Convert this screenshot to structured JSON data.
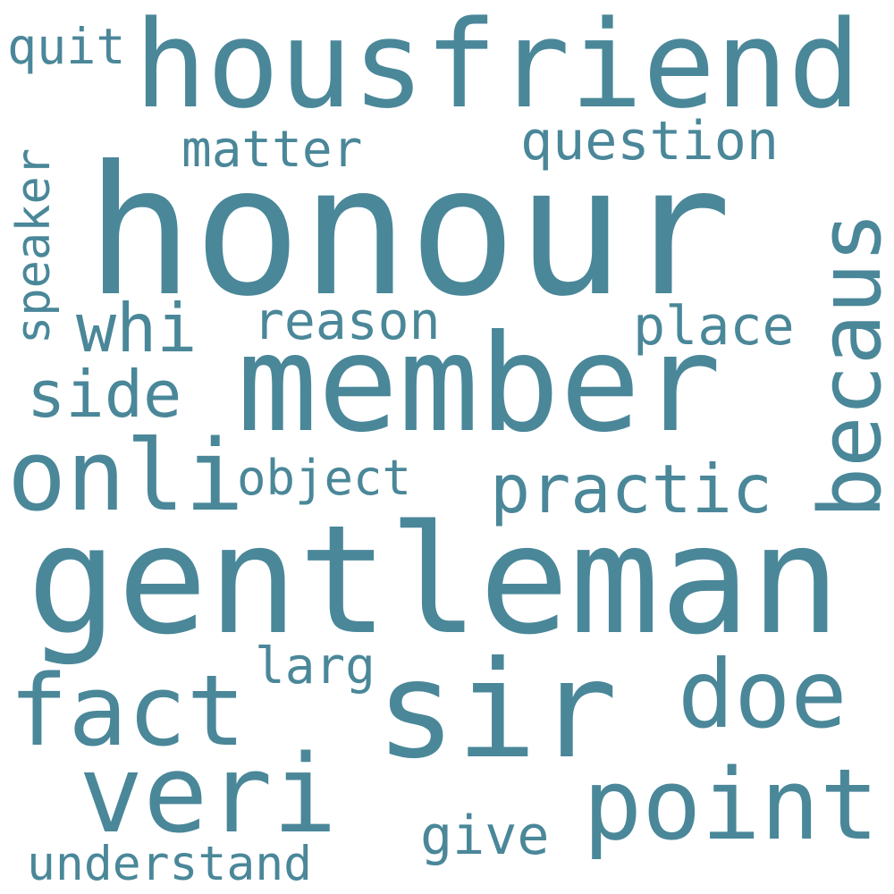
{
  "wordcloud": {
    "color": "#4a8799",
    "background": "#ffffff",
    "words": {
      "honour": "honour",
      "gentleman": "gentleman",
      "member": "member",
      "sir": "sir",
      "housfriend": "housfriend",
      "veri": "veri",
      "point": "point",
      "onli": "onli",
      "fact": "fact",
      "doe": "doe",
      "becaus": "becaus",
      "practic": "practic",
      "whi": "whi",
      "side": "side",
      "question": "question",
      "place": "place",
      "reason": "reason",
      "matter": "matter",
      "object": "object",
      "larg": "larg",
      "give": "give",
      "understand": "understand",
      "quit": "quit",
      "speaker": "speaker"
    }
  }
}
